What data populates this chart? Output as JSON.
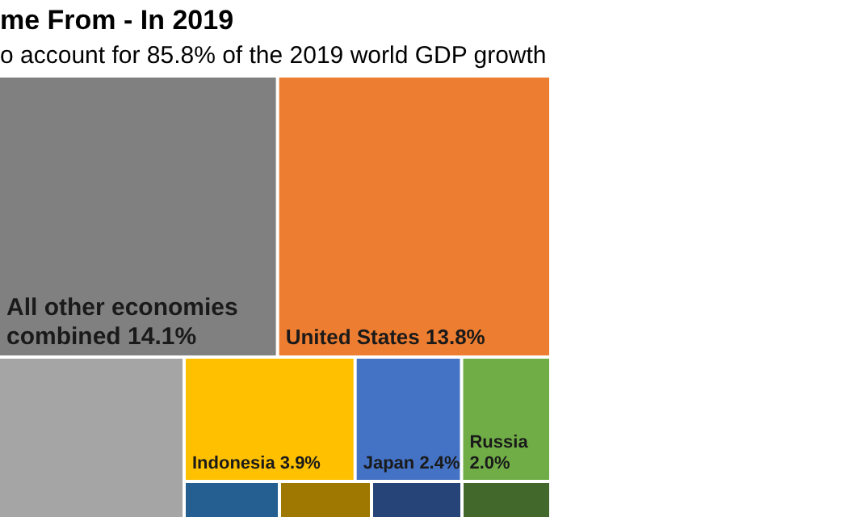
{
  "chart_data": {
    "type": "other",
    "title": "me From - In 2019",
    "subtitle": "o account for 85.8% of the 2019 world GDP growth",
    "categories": [
      "All other economies combined",
      "United States",
      null,
      "Indonesia",
      "Japan",
      "Russia",
      null,
      null,
      null,
      null
    ],
    "values": [
      14.1,
      13.8,
      null,
      3.9,
      2.4,
      2.0,
      null,
      null,
      null,
      null
    ],
    "colors": [
      "#808080",
      "#ed7d31",
      "#a5a5a5",
      "#ffc000",
      "#4472c4",
      "#70ad47",
      "#255e91",
      "#9e7800",
      "#264478",
      "#43682b"
    ],
    "value_labels": [
      "14.1%",
      "13.8%",
      null,
      "3.9%",
      "2.4%",
      "2.0%",
      null,
      null,
      null,
      null
    ]
  }
}
